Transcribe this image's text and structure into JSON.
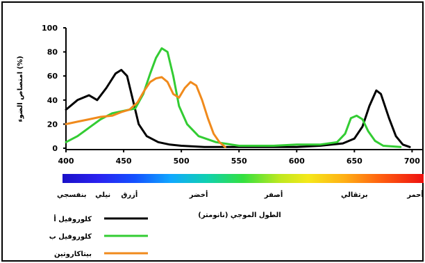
{
  "chart_data": {
    "type": "line",
    "ylabel": "امتصاص الضوء (%)",
    "xlabel": "الطول الموجي (نانومتر)",
    "xlim": [
      400,
      710
    ],
    "ylim": [
      0,
      100
    ],
    "x_ticks": [
      400,
      450,
      500,
      550,
      600,
      650,
      700
    ],
    "y_ticks": [
      0,
      20,
      40,
      60,
      80,
      100
    ],
    "grid": false,
    "legend_position": "bottom-left",
    "spectrum_labels": [
      {
        "label": "بنفسجي",
        "x": 405
      },
      {
        "label": "نيلي",
        "x": 432
      },
      {
        "label": "أزرق",
        "x": 455
      },
      {
        "label": "أخضر",
        "x": 515
      },
      {
        "label": "أصفر",
        "x": 580
      },
      {
        "label": "برتقالي",
        "x": 650
      },
      {
        "label": "أحمر",
        "x": 705
      }
    ],
    "series": [
      {
        "name": "كلوروفيل أ",
        "color": "#000000",
        "points": [
          [
            400,
            32
          ],
          [
            410,
            40
          ],
          [
            420,
            44
          ],
          [
            427,
            40
          ],
          [
            435,
            50
          ],
          [
            443,
            62
          ],
          [
            448,
            65
          ],
          [
            453,
            60
          ],
          [
            458,
            40
          ],
          [
            463,
            20
          ],
          [
            470,
            10
          ],
          [
            480,
            5
          ],
          [
            490,
            3
          ],
          [
            500,
            2
          ],
          [
            520,
            1
          ],
          [
            550,
            1
          ],
          [
            600,
            1
          ],
          [
            620,
            2
          ],
          [
            640,
            4
          ],
          [
            650,
            8
          ],
          [
            657,
            18
          ],
          [
            663,
            35
          ],
          [
            669,
            48
          ],
          [
            673,
            45
          ],
          [
            680,
            25
          ],
          [
            686,
            10
          ],
          [
            692,
            3
          ],
          [
            698,
            1
          ]
        ]
      },
      {
        "name": "كلوروفيل ب",
        "color": "#33cc33",
        "points": [
          [
            400,
            5
          ],
          [
            410,
            10
          ],
          [
            420,
            17
          ],
          [
            430,
            24
          ],
          [
            440,
            29
          ],
          [
            450,
            31
          ],
          [
            460,
            33
          ],
          [
            467,
            45
          ],
          [
            473,
            62
          ],
          [
            478,
            75
          ],
          [
            483,
            83
          ],
          [
            488,
            80
          ],
          [
            493,
            60
          ],
          [
            498,
            35
          ],
          [
            505,
            20
          ],
          [
            515,
            10
          ],
          [
            530,
            5
          ],
          [
            550,
            2
          ],
          [
            580,
            2
          ],
          [
            600,
            3
          ],
          [
            620,
            3
          ],
          [
            635,
            5
          ],
          [
            642,
            12
          ],
          [
            647,
            25
          ],
          [
            652,
            27
          ],
          [
            657,
            24
          ],
          [
            662,
            14
          ],
          [
            668,
            6
          ],
          [
            675,
            2
          ],
          [
            690,
            1
          ]
        ]
      },
      {
        "name": "بيتاكاروتين",
        "color": "#f08a1c",
        "points": [
          [
            400,
            20
          ],
          [
            410,
            22
          ],
          [
            420,
            24
          ],
          [
            430,
            26
          ],
          [
            440,
            27
          ],
          [
            448,
            30
          ],
          [
            455,
            32
          ],
          [
            462,
            38
          ],
          [
            468,
            48
          ],
          [
            473,
            55
          ],
          [
            478,
            58
          ],
          [
            483,
            59
          ],
          [
            488,
            55
          ],
          [
            493,
            45
          ],
          [
            498,
            42
          ],
          [
            503,
            50
          ],
          [
            508,
            55
          ],
          [
            513,
            52
          ],
          [
            518,
            40
          ],
          [
            523,
            25
          ],
          [
            528,
            12
          ],
          [
            533,
            5
          ],
          [
            538,
            1
          ]
        ]
      }
    ]
  }
}
